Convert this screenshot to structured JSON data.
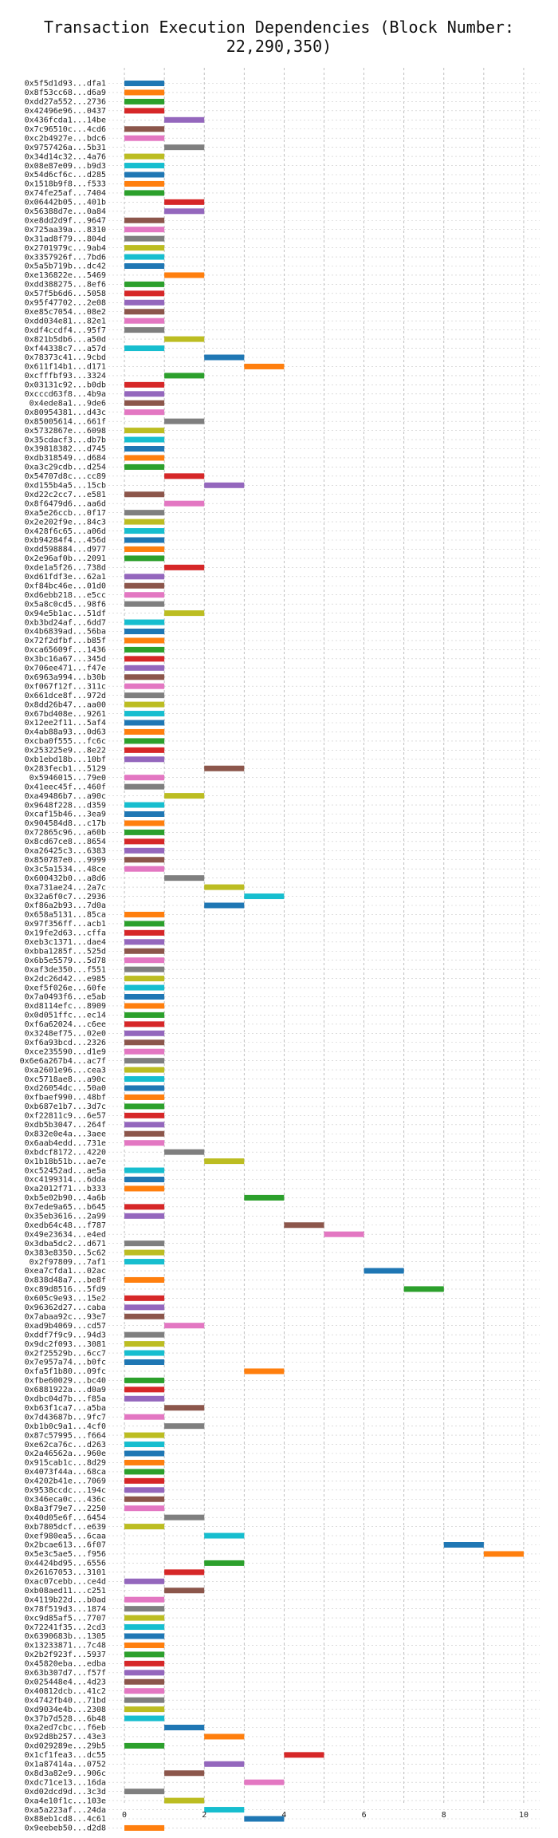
{
  "chart_data": {
    "type": "bar",
    "orientation": "horizontal",
    "title": "Transaction Execution Dependencies (Block Number: 22,290,350)",
    "xlabel": "",
    "ylabel": "",
    "xlim": [
      -0.4,
      10.4
    ],
    "xticks": [
      0,
      2,
      4,
      6,
      8,
      10
    ],
    "grid": true,
    "palette": [
      "#1f77b4",
      "#ff7f0e",
      "#2ca02c",
      "#d62728",
      "#9467bd",
      "#8c564b",
      "#e377c2",
      "#7f7f7f",
      "#bcbd22",
      "#17becf"
    ],
    "transactions": [
      {
        "label": "0x5f5d1d93...dfa1",
        "start": 0,
        "end": 1
      },
      {
        "label": "0x8f53cc68...d6a9",
        "start": 0,
        "end": 1
      },
      {
        "label": "0xdd27a552...2736",
        "start": 0,
        "end": 1
      },
      {
        "label": "0x42496e96...0437",
        "start": 0,
        "end": 1
      },
      {
        "label": "0x436fcda1...14be",
        "start": 1,
        "end": 2
      },
      {
        "label": "0x7c96510c...4cd6",
        "start": 0,
        "end": 1
      },
      {
        "label": "0xc2b4927e...bdc6",
        "start": 0,
        "end": 1
      },
      {
        "label": "0x9757426a...5b31",
        "start": 1,
        "end": 2
      },
      {
        "label": "0x34d14c32...4a76",
        "start": 0,
        "end": 1
      },
      {
        "label": "0x08e87e09...b9d3",
        "start": 0,
        "end": 1
      },
      {
        "label": "0x54d6cf6c...d285",
        "start": 0,
        "end": 1
      },
      {
        "label": "0x1518b9f8...f533",
        "start": 0,
        "end": 1
      },
      {
        "label": "0x74fe25af...7404",
        "start": 0,
        "end": 1
      },
      {
        "label": "0x06442b05...401b",
        "start": 1,
        "end": 2
      },
      {
        "label": "0x56388d7e...0a84",
        "start": 1,
        "end": 2
      },
      {
        "label": "0xe8dd2d9f...9647",
        "start": 0,
        "end": 1
      },
      {
        "label": "0x725aa39a...8310",
        "start": 0,
        "end": 1
      },
      {
        "label": "0x31ad8f79...804d",
        "start": 0,
        "end": 1
      },
      {
        "label": "0x2701979c...9ab4",
        "start": 0,
        "end": 1
      },
      {
        "label": "0x3357926f...7bd6",
        "start": 0,
        "end": 1
      },
      {
        "label": "0x5a5b719b...dc42",
        "start": 0,
        "end": 1
      },
      {
        "label": "0xe136822e...5469",
        "start": 1,
        "end": 2
      },
      {
        "label": "0xdd388275...8ef6",
        "start": 0,
        "end": 1
      },
      {
        "label": "0x57f5b6d6...5058",
        "start": 0,
        "end": 1
      },
      {
        "label": "0x95f47702...2e08",
        "start": 0,
        "end": 1
      },
      {
        "label": "0xe85c7054...08e2",
        "start": 0,
        "end": 1
      },
      {
        "label": "0xdd034e81...82e1",
        "start": 0,
        "end": 1
      },
      {
        "label": "0xdf4ccdf4...95f7",
        "start": 0,
        "end": 1
      },
      {
        "label": "0x821b5db6...a50d",
        "start": 1,
        "end": 2
      },
      {
        "label": "0xf44338c7...a57d",
        "start": 0,
        "end": 1
      },
      {
        "label": "0x78373c41...9cbd",
        "start": 2,
        "end": 3
      },
      {
        "label": "0x611f14b1...d171",
        "start": 3,
        "end": 4
      },
      {
        "label": "0xcfffbf93...3324",
        "start": 1,
        "end": 2
      },
      {
        "label": "0x03131c92...b0db",
        "start": 0,
        "end": 1
      },
      {
        "label": "0xcccd63f8...4b9a",
        "start": 0,
        "end": 1
      },
      {
        "label": "0x4ede8a1...9de6",
        "start": 0,
        "end": 1
      },
      {
        "label": "0x80954381...d43c",
        "start": 0,
        "end": 1
      },
      {
        "label": "0x85005614...661f",
        "start": 1,
        "end": 2
      },
      {
        "label": "0x5732867e...6098",
        "start": 0,
        "end": 1
      },
      {
        "label": "0x35cdacf3...db7b",
        "start": 0,
        "end": 1
      },
      {
        "label": "0x39818382...d745",
        "start": 0,
        "end": 1
      },
      {
        "label": "0xdb318549...d684",
        "start": 0,
        "end": 1
      },
      {
        "label": "0xa3c29cdb...d254",
        "start": 0,
        "end": 1
      },
      {
        "label": "0x54707d8c...cc89",
        "start": 1,
        "end": 2
      },
      {
        "label": "0xd155b4a5...15cb",
        "start": 2,
        "end": 3
      },
      {
        "label": "0xd22c2cc7...e581",
        "start": 0,
        "end": 1
      },
      {
        "label": "0x8f6479d6...aa6d",
        "start": 1,
        "end": 2
      },
      {
        "label": "0xa5e26ccb...0f17",
        "start": 0,
        "end": 1
      },
      {
        "label": "0x2e202f9e...84c3",
        "start": 0,
        "end": 1
      },
      {
        "label": "0x428f6c65...a06d",
        "start": 0,
        "end": 1
      },
      {
        "label": "0xb94284f4...456d",
        "start": 0,
        "end": 1
      },
      {
        "label": "0xdd598884...d977",
        "start": 0,
        "end": 1
      },
      {
        "label": "0x2e96af0b...2091",
        "start": 0,
        "end": 1
      },
      {
        "label": "0xde1a5f26...738d",
        "start": 1,
        "end": 2
      },
      {
        "label": "0xd61fdf3e...62a1",
        "start": 0,
        "end": 1
      },
      {
        "label": "0xf84bc46e...01d0",
        "start": 0,
        "end": 1
      },
      {
        "label": "0xd6ebb218...e5cc",
        "start": 0,
        "end": 1
      },
      {
        "label": "0x5a8c0cd5...98f6",
        "start": 0,
        "end": 1
      },
      {
        "label": "0x94e5b1ac...51df",
        "start": 1,
        "end": 2
      },
      {
        "label": "0xb3bd24af...6dd7",
        "start": 0,
        "end": 1
      },
      {
        "label": "0x4b6839ad...56ba",
        "start": 0,
        "end": 1
      },
      {
        "label": "0x72f2dfbf...b85f",
        "start": 0,
        "end": 1
      },
      {
        "label": "0xca65609f...1436",
        "start": 0,
        "end": 1
      },
      {
        "label": "0x3bc16a67...345d",
        "start": 0,
        "end": 1
      },
      {
        "label": "0x706ee471...f47e",
        "start": 0,
        "end": 1
      },
      {
        "label": "0x6963a994...b30b",
        "start": 0,
        "end": 1
      },
      {
        "label": "0xf067f12f...311c",
        "start": 0,
        "end": 1
      },
      {
        "label": "0x661dce8f...972d",
        "start": 0,
        "end": 1
      },
      {
        "label": "0x8dd26b47...aa00",
        "start": 0,
        "end": 1
      },
      {
        "label": "0x67bd408e...9261",
        "start": 0,
        "end": 1
      },
      {
        "label": "0x12ee2f11...5af4",
        "start": 0,
        "end": 1
      },
      {
        "label": "0x4ab88a93...0d63",
        "start": 0,
        "end": 1
      },
      {
        "label": "0xcba0f555...fc6c",
        "start": 0,
        "end": 1
      },
      {
        "label": "0x253225e9...8e22",
        "start": 0,
        "end": 1
      },
      {
        "label": "0xb1ebd18b...10bf",
        "start": 0,
        "end": 1
      },
      {
        "label": "0x283fecb1...5129",
        "start": 2,
        "end": 3
      },
      {
        "label": "0x5946015...79e0",
        "start": 0,
        "end": 1
      },
      {
        "label": "0x41eec45f...460f",
        "start": 0,
        "end": 1
      },
      {
        "label": "0xa49486b7...a90c",
        "start": 1,
        "end": 2
      },
      {
        "label": "0x9648f228...d359",
        "start": 0,
        "end": 1
      },
      {
        "label": "0xcaf15b46...3ea9",
        "start": 0,
        "end": 1
      },
      {
        "label": "0x904584d8...c17b",
        "start": 0,
        "end": 1
      },
      {
        "label": "0x72865c96...a60b",
        "start": 0,
        "end": 1
      },
      {
        "label": "0x8cd67ce8...8654",
        "start": 0,
        "end": 1
      },
      {
        "label": "0xa26425c3...6383",
        "start": 0,
        "end": 1
      },
      {
        "label": "0x850787e0...9999",
        "start": 0,
        "end": 1
      },
      {
        "label": "0x3c5a1534...48ce",
        "start": 0,
        "end": 1
      },
      {
        "label": "0x600432b0...a8d6",
        "start": 1,
        "end": 2
      },
      {
        "label": "0xa731ae24...2a7c",
        "start": 2,
        "end": 3
      },
      {
        "label": "0x32a6f0c7...2936",
        "start": 3,
        "end": 4
      },
      {
        "label": "0xf86a2b93...7d0a",
        "start": 2,
        "end": 3
      },
      {
        "label": "0x658a5131...85ca",
        "start": 0,
        "end": 1
      },
      {
        "label": "0x97f356ff...acb1",
        "start": 0,
        "end": 1
      },
      {
        "label": "0x19fe2d63...cffa",
        "start": 0,
        "end": 1
      },
      {
        "label": "0xeb3c1371...dae4",
        "start": 0,
        "end": 1
      },
      {
        "label": "0xbba1285f...525d",
        "start": 0,
        "end": 1
      },
      {
        "label": "0x6b5e5579...5d78",
        "start": 0,
        "end": 1
      },
      {
        "label": "0xaf3de350...f551",
        "start": 0,
        "end": 1
      },
      {
        "label": "0x2dc26d42...e985",
        "start": 0,
        "end": 1
      },
      {
        "label": "0xef5f026e...60fe",
        "start": 0,
        "end": 1
      },
      {
        "label": "0x7a0493f6...e5ab",
        "start": 0,
        "end": 1
      },
      {
        "label": "0xd8114efc...8909",
        "start": 0,
        "end": 1
      },
      {
        "label": "0x0d051ffc...ec14",
        "start": 0,
        "end": 1
      },
      {
        "label": "0xf6a62024...c6ee",
        "start": 0,
        "end": 1
      },
      {
        "label": "0x3248ef75...02e0",
        "start": 0,
        "end": 1
      },
      {
        "label": "0xf6a93bcd...2326",
        "start": 0,
        "end": 1
      },
      {
        "label": "0xce235590...d1e9",
        "start": 0,
        "end": 1
      },
      {
        "label": "0x6e6a267b4...ac7f",
        "start": 0,
        "end": 1
      },
      {
        "label": "0xa2601e96...cea3",
        "start": 0,
        "end": 1
      },
      {
        "label": "0xc5718ae8...a90c",
        "start": 0,
        "end": 1
      },
      {
        "label": "0xd26054dc...50a0",
        "start": 0,
        "end": 1
      },
      {
        "label": "0xfbaef990...48bf",
        "start": 0,
        "end": 1
      },
      {
        "label": "0xb687e1b7...3d7c",
        "start": 0,
        "end": 1
      },
      {
        "label": "0xf22811c9...6e57",
        "start": 0,
        "end": 1
      },
      {
        "label": "0xdb5b3047...264f",
        "start": 0,
        "end": 1
      },
      {
        "label": "0x832e0e4a...3aee",
        "start": 0,
        "end": 1
      },
      {
        "label": "0x6aab4edd...731e",
        "start": 0,
        "end": 1
      },
      {
        "label": "0xbdcf8172...4220",
        "start": 1,
        "end": 2
      },
      {
        "label": "0x1b18b51b...ae7e",
        "start": 2,
        "end": 3
      },
      {
        "label": "0xc52452ad...ae5a",
        "start": 0,
        "end": 1
      },
      {
        "label": "0xc4199314...6dda",
        "start": 0,
        "end": 1
      },
      {
        "label": "0xa2012f71...b333",
        "start": 0,
        "end": 1
      },
      {
        "label": "0xb5e02b90...4a6b",
        "start": 3,
        "end": 4
      },
      {
        "label": "0x7ede9a65...b645",
        "start": 0,
        "end": 1
      },
      {
        "label": "0x35eb3616...2a99",
        "start": 0,
        "end": 1
      },
      {
        "label": "0xedb64c48...f787",
        "start": 4,
        "end": 5
      },
      {
        "label": "0x49e23634...e4ed",
        "start": 5,
        "end": 6
      },
      {
        "label": "0x3dba5dc2...d671",
        "start": 0,
        "end": 1
      },
      {
        "label": "0x383e8350...5c62",
        "start": 0,
        "end": 1
      },
      {
        "label": "0x2f97809...7af1",
        "start": 0,
        "end": 1
      },
      {
        "label": "0xea7cfda1...02ac",
        "start": 6,
        "end": 7
      },
      {
        "label": "0x838d48a7...be8f",
        "start": 0,
        "end": 1
      },
      {
        "label": "0xc89d8516...5fd9",
        "start": 7,
        "end": 8
      },
      {
        "label": "0x605c9e93...15e2",
        "start": 0,
        "end": 1
      },
      {
        "label": "0x96362d27...caba",
        "start": 0,
        "end": 1
      },
      {
        "label": "0x7abaa92c...93e7",
        "start": 0,
        "end": 1
      },
      {
        "label": "0xad9b4069...cd57",
        "start": 1,
        "end": 2
      },
      {
        "label": "0xddf7f9c9...94d3",
        "start": 0,
        "end": 1
      },
      {
        "label": "0x9dc2f093...3081",
        "start": 0,
        "end": 1
      },
      {
        "label": "0x2f25529b...6cc7",
        "start": 0,
        "end": 1
      },
      {
        "label": "0x7e957a74...b0fc",
        "start": 0,
        "end": 1
      },
      {
        "label": "0xfa5f1b80...09fc",
        "start": 3,
        "end": 4
      },
      {
        "label": "0xfbe60029...bc40",
        "start": 0,
        "end": 1
      },
      {
        "label": "0x6881922a...d0a9",
        "start": 0,
        "end": 1
      },
      {
        "label": "0xdbc04d7b...f85a",
        "start": 0,
        "end": 1
      },
      {
        "label": "0xb63f1ca7...a5ba",
        "start": 1,
        "end": 2
      },
      {
        "label": "0x7d43687b...9fc7",
        "start": 0,
        "end": 1
      },
      {
        "label": "0xb1b0c9a1...4cf0",
        "start": 1,
        "end": 2
      },
      {
        "label": "0x87c57995...f664",
        "start": 0,
        "end": 1
      },
      {
        "label": "0xe62ca76c...d263",
        "start": 0,
        "end": 1
      },
      {
        "label": "0x2a46562a...960e",
        "start": 0,
        "end": 1
      },
      {
        "label": "0x915cab1c...8d29",
        "start": 0,
        "end": 1
      },
      {
        "label": "0x4073f44a...68ca",
        "start": 0,
        "end": 1
      },
      {
        "label": "0x4202b41e...7069",
        "start": 0,
        "end": 1
      },
      {
        "label": "0x9538ccdc...194c",
        "start": 0,
        "end": 1
      },
      {
        "label": "0x346eca0c...436c",
        "start": 0,
        "end": 1
      },
      {
        "label": "0x8a3f79e7...2250",
        "start": 0,
        "end": 1
      },
      {
        "label": "0x40d05e6f...6454",
        "start": 1,
        "end": 2
      },
      {
        "label": "0xb7805dcf...e639",
        "start": 0,
        "end": 1
      },
      {
        "label": "0xef980ea5...6caa",
        "start": 2,
        "end": 3
      },
      {
        "label": "0x2bcae613...6f07",
        "start": 8,
        "end": 9
      },
      {
        "label": "0x5e3c5ae5...f956",
        "start": 9,
        "end": 10
      },
      {
        "label": "0x4424bd95...6556",
        "start": 2,
        "end": 3
      },
      {
        "label": "0x26167053...3101",
        "start": 1,
        "end": 2
      },
      {
        "label": "0xac07cebb...ce4d",
        "start": 0,
        "end": 1
      },
      {
        "label": "0xb08aed11...c251",
        "start": 1,
        "end": 2
      },
      {
        "label": "0x4119b22d...b0ad",
        "start": 0,
        "end": 1
      },
      {
        "label": "0x78f519d3...1874",
        "start": 0,
        "end": 1
      },
      {
        "label": "0xc9d85af5...7707",
        "start": 0,
        "end": 1
      },
      {
        "label": "0x72241f35...2cd3",
        "start": 0,
        "end": 1
      },
      {
        "label": "0x6390683b...1305",
        "start": 0,
        "end": 1
      },
      {
        "label": "0x13233871...7c48",
        "start": 0,
        "end": 1
      },
      {
        "label": "0x2b2f923f...5937",
        "start": 0,
        "end": 1
      },
      {
        "label": "0x45820eba...edba",
        "start": 0,
        "end": 1
      },
      {
        "label": "0x63b307d7...f57f",
        "start": 0,
        "end": 1
      },
      {
        "label": "0x025448e4...4d23",
        "start": 0,
        "end": 1
      },
      {
        "label": "0x40812dcb...41c2",
        "start": 0,
        "end": 1
      },
      {
        "label": "0x4742fb40...71bd",
        "start": 0,
        "end": 1
      },
      {
        "label": "0xd9034e4b...2308",
        "start": 0,
        "end": 1
      },
      {
        "label": "0x37b7d528...6b48",
        "start": 0,
        "end": 1
      },
      {
        "label": "0xa2ed7cbc...f6eb",
        "start": 1,
        "end": 2
      },
      {
        "label": "0x92d8b257...43e3",
        "start": 2,
        "end": 3
      },
      {
        "label": "0xd029289e...29b5",
        "start": 0,
        "end": 1
      },
      {
        "label": "0x1cf1fea3...dc55",
        "start": 4,
        "end": 5
      },
      {
        "label": "0x1a87414a...0752",
        "start": 2,
        "end": 3
      },
      {
        "label": "0x8d3a82e9...906c",
        "start": 1,
        "end": 2
      },
      {
        "label": "0xdc71ce13...16da",
        "start": 3,
        "end": 4
      },
      {
        "label": "0xd02dcd9d...3c3d",
        "start": 0,
        "end": 1
      },
      {
        "label": "0xa4e10f1c...103e",
        "start": 1,
        "end": 2
      },
      {
        "label": "0xa5a223af...24da",
        "start": 2,
        "end": 3
      },
      {
        "label": "0x88eb1cd8...4c61",
        "start": 3,
        "end": 4
      },
      {
        "label": "0x9eebeb50...d2d8",
        "start": 0,
        "end": 1
      }
    ]
  }
}
